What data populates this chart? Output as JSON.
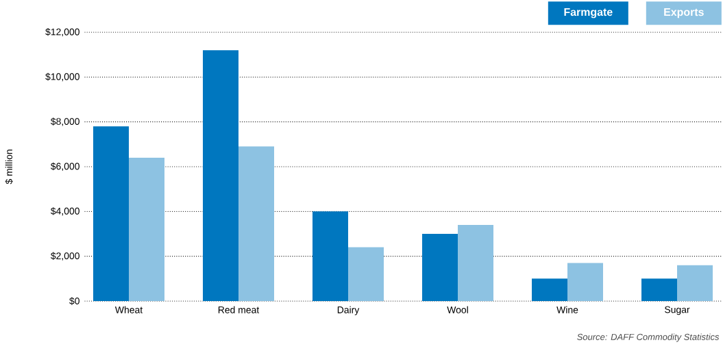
{
  "chart_data": {
    "type": "bar",
    "ylabel": "$ million",
    "categories": [
      "Wheat",
      "Red meat",
      "Dairy",
      "Wool",
      "Wine",
      "Sugar"
    ],
    "series": [
      {
        "name": "Farmgate",
        "color": "#0077bf",
        "values": [
          7800,
          11200,
          4000,
          3000,
          1000,
          1000
        ]
      },
      {
        "name": "Exports",
        "color": "#8dc2e2",
        "values": [
          6400,
          6900,
          2400,
          3400,
          1700,
          1600
        ]
      }
    ],
    "ylim": [
      0,
      12000
    ],
    "yticks": [
      {
        "value": 0,
        "label": "$0"
      },
      {
        "value": 2000,
        "label": "$2,000"
      },
      {
        "value": 4000,
        "label": "$4,000"
      },
      {
        "value": 6000,
        "label": "$6,000"
      },
      {
        "value": 8000,
        "label": "$8,000"
      },
      {
        "value": 10000,
        "label": "$10,000"
      },
      {
        "value": 12000,
        "label": "$12,000"
      }
    ],
    "grid": "y",
    "legend": "top right",
    "annotations": [
      "Source: DAFF Commodity Statistics"
    ]
  }
}
